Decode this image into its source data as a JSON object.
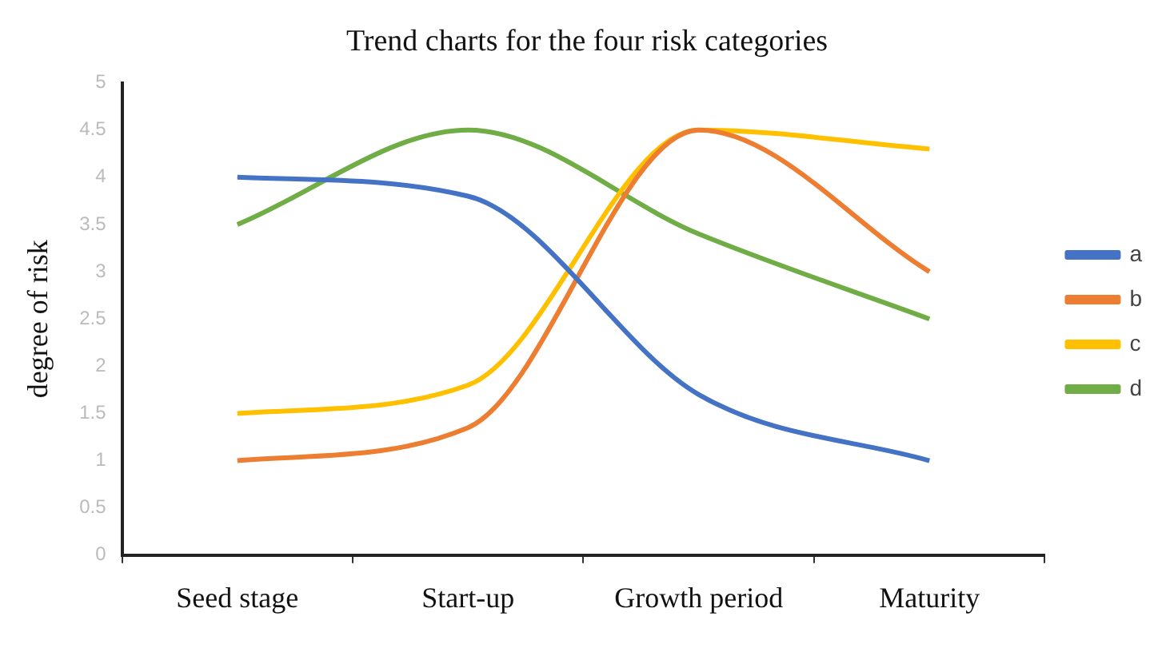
{
  "chart_data": {
    "type": "line",
    "title": "Trend charts for the four risk categories",
    "ylabel": "degree of risk",
    "categories": [
      "Seed stage",
      "Start-up",
      "Growth period",
      "Maturity"
    ],
    "series": [
      {
        "name": "a",
        "color": "#4472c4",
        "values": [
          4,
          3.8,
          1.7,
          1
        ]
      },
      {
        "name": "b",
        "color": "#ed7d31",
        "values": [
          1,
          1.35,
          4.5,
          3
        ]
      },
      {
        "name": "c",
        "color": "#ffc000",
        "values": [
          1.5,
          1.8,
          4.5,
          4.3
        ]
      },
      {
        "name": "d",
        "color": "#70ad47",
        "values": [
          3.5,
          4.5,
          3.4,
          2.5
        ]
      }
    ],
    "ylim": [
      0,
      5
    ],
    "yticks": [
      0,
      0.5,
      1,
      1.5,
      2,
      2.5,
      3,
      3.5,
      4,
      4.5,
      5
    ],
    "grid": false,
    "legend": "right",
    "marker": "none",
    "line_style": "solid"
  }
}
